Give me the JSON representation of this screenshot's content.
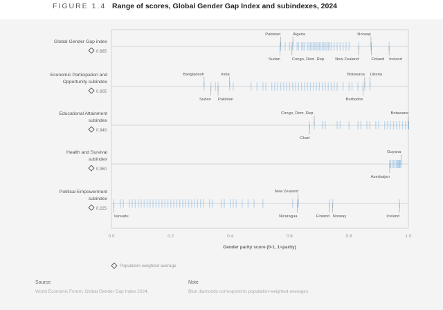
{
  "header": {
    "figure": "FIGURE 1.4",
    "title": "Range of scores, Global Gender Gap Index and subindexes, 2024"
  },
  "chart_data": {
    "type": "strip",
    "xlabel": "Gender parity score (0-1, 1=parity)",
    "xlim": [
      0,
      1
    ],
    "xticks": [
      "0.0",
      "0.2",
      "0.4",
      "0.6",
      "0.8",
      "1.0"
    ],
    "legend": {
      "label": "Population-weighted average",
      "position": "bottom-left"
    },
    "accent": "#2e8bd6",
    "rows": [
      {
        "label": [
          "Global Gender Gap index"
        ],
        "average": "0.685",
        "scores": [
          0.568,
          0.57,
          0.585,
          0.6,
          0.608,
          0.611,
          0.625,
          0.63,
          0.64,
          0.645,
          0.65,
          0.66,
          0.665,
          0.67,
          0.675,
          0.68,
          0.685,
          0.69,
          0.695,
          0.7,
          0.705,
          0.71,
          0.715,
          0.72,
          0.725,
          0.73,
          0.735,
          0.74,
          0.75,
          0.76,
          0.77,
          0.78,
          0.79,
          0.8,
          0.833,
          0.874,
          0.875,
          0.935
        ],
        "labels_above": [
          {
            "name": "Pakistan",
            "value": 0.57
          },
          {
            "name": "Algeria",
            "value": 0.611
          },
          {
            "name": "Norway",
            "value": 0.874
          }
        ],
        "labels_below": [
          {
            "name": "Sudan",
            "value": 0.568
          },
          {
            "name": "Congo, Dem. Rep.",
            "value": 0.608
          },
          {
            "name": "New Zealand",
            "value": 0.833
          },
          {
            "name": "Finland",
            "value": 0.875
          },
          {
            "name": "Iceland",
            "value": 0.935
          }
        ]
      },
      {
        "label": [
          "Economic Participation and",
          "Opportunity subindex"
        ],
        "average": "0.605",
        "scores": [
          0.312,
          0.335,
          0.35,
          0.359,
          0.398,
          0.41,
          0.47,
          0.49,
          0.51,
          0.52,
          0.54,
          0.55,
          0.56,
          0.57,
          0.58,
          0.59,
          0.6,
          0.61,
          0.62,
          0.63,
          0.64,
          0.65,
          0.66,
          0.67,
          0.68,
          0.69,
          0.7,
          0.71,
          0.72,
          0.73,
          0.74,
          0.75,
          0.76,
          0.78,
          0.8,
          0.81,
          0.83,
          0.847,
          0.853,
          0.871
        ],
        "labels_above": [
          {
            "name": "Bangladesh",
            "value": 0.312
          },
          {
            "name": "India",
            "value": 0.398
          },
          {
            "name": "Botswana",
            "value": 0.853
          },
          {
            "name": "Liberia",
            "value": 0.871
          }
        ],
        "labels_below": [
          {
            "name": "Sudan",
            "value": 0.335
          },
          {
            "name": "Pakistan",
            "value": 0.359
          },
          {
            "name": "Barbados",
            "value": 0.847
          }
        ]
      },
      {
        "label": [
          "Educational Attainment",
          "subindex"
        ],
        "average": "0.949",
        "scores": [
          0.667,
          0.683,
          0.71,
          0.72,
          0.76,
          0.77,
          0.8,
          0.83,
          0.84,
          0.86,
          0.87,
          0.89,
          0.9,
          0.92,
          0.93,
          0.94,
          0.95,
          0.96,
          0.97,
          0.98,
          0.99,
          1.0,
          1.0,
          1.0
        ],
        "labels_above": [
          {
            "name": "Congo, Dem. Rep.",
            "value": 0.683
          },
          {
            "name": "Botswana",
            "value": 1.0
          }
        ],
        "labels_below": [
          {
            "name": "Chad",
            "value": 0.667
          }
        ]
      },
      {
        "label": [
          "Health and Survival",
          "subindex"
        ],
        "average": "0.960",
        "scores": [
          0.937,
          0.94,
          0.945,
          0.95,
          0.955,
          0.96,
          0.962,
          0.965,
          0.968,
          0.97,
          0.972,
          0.975
        ],
        "labels_above": [
          {
            "name": "Guyana",
            "value": 0.975
          }
        ],
        "labels_below": [
          {
            "name": "Azerbaijan",
            "value": 0.937
          }
        ]
      },
      {
        "label": [
          "Political Empowerment",
          "subindex"
        ],
        "average": "0.225",
        "scores": [
          0.008,
          0.03,
          0.04,
          0.06,
          0.07,
          0.08,
          0.09,
          0.1,
          0.11,
          0.12,
          0.13,
          0.14,
          0.15,
          0.16,
          0.17,
          0.18,
          0.19,
          0.2,
          0.21,
          0.22,
          0.23,
          0.24,
          0.25,
          0.26,
          0.27,
          0.28,
          0.29,
          0.3,
          0.31,
          0.33,
          0.34,
          0.37,
          0.38,
          0.4,
          0.41,
          0.42,
          0.44,
          0.46,
          0.48,
          0.51,
          0.61,
          0.626,
          0.629,
          0.734,
          0.745,
          0.97
        ],
        "labels_above": [
          {
            "name": "New Zealand",
            "value": 0.629
          }
        ],
        "labels_below": [
          {
            "name": "Vanuatu",
            "value": 0.008
          },
          {
            "name": "Nicaragua",
            "value": 0.626
          },
          {
            "name": "Finland",
            "value": 0.734
          },
          {
            "name": "Norway",
            "value": 0.745
          },
          {
            "name": "Iceland",
            "value": 0.97
          }
        ]
      }
    ]
  },
  "footer": {
    "source_title": "Source",
    "source_text": "World Economic Forum, Global Gender Gap Index 2024.",
    "note_title": "Note",
    "note_text": "Blue diamonds correspond to population-weighted averages."
  }
}
